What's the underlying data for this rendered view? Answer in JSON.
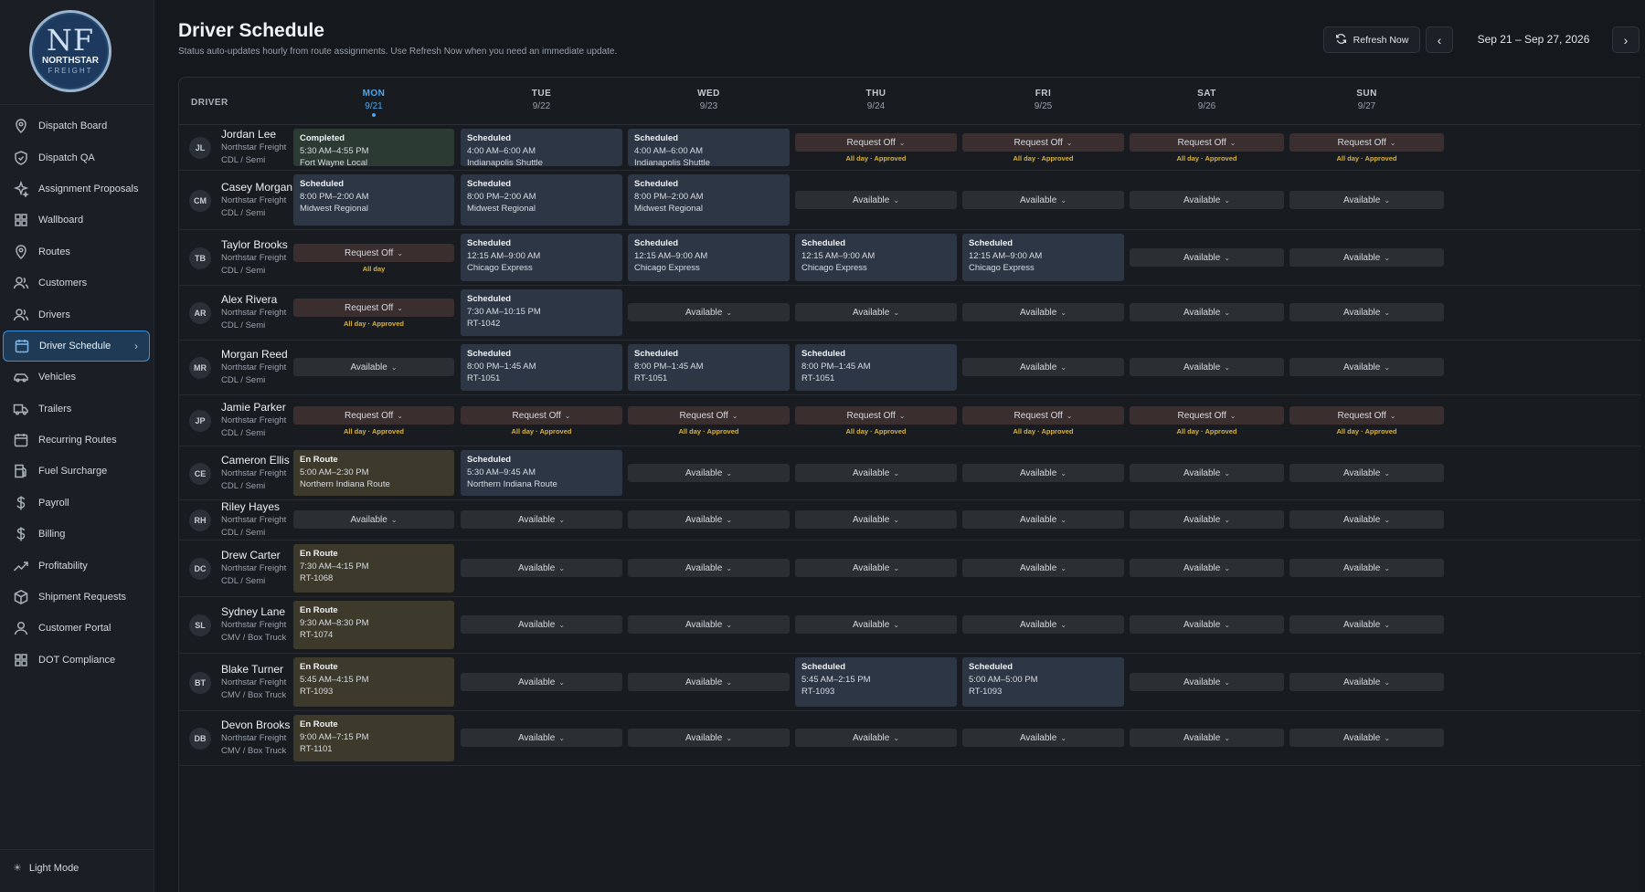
{
  "brand": {
    "initials": "NF",
    "name": "NORTHSTAR",
    "sub": "FREIGHT"
  },
  "sidebar": {
    "items": [
      {
        "label": "Dispatch Board",
        "icon": "map-pin-icon"
      },
      {
        "label": "Dispatch QA",
        "icon": "shield-icon"
      },
      {
        "label": "Assignment Proposals",
        "icon": "sparkle-icon"
      },
      {
        "label": "Wallboard",
        "icon": "grid-icon"
      },
      {
        "label": "Routes",
        "icon": "map-pin-icon"
      },
      {
        "label": "Customers",
        "icon": "users-icon"
      },
      {
        "label": "Drivers",
        "icon": "users-icon"
      },
      {
        "label": "Driver Schedule",
        "icon": "calendar-icon",
        "active": true
      },
      {
        "label": "Vehicles",
        "icon": "car-icon"
      },
      {
        "label": "Trailers",
        "icon": "truck-icon"
      },
      {
        "label": "Recurring Routes",
        "icon": "calendar-icon"
      },
      {
        "label": "Fuel Surcharge",
        "icon": "fuel-icon"
      },
      {
        "label": "Payroll",
        "icon": "dollar-icon"
      },
      {
        "label": "Billing",
        "icon": "dollar-icon"
      },
      {
        "label": "Profitability",
        "icon": "trend-icon"
      },
      {
        "label": "Shipment Requests",
        "icon": "box-icon"
      },
      {
        "label": "Customer Portal",
        "icon": "user-icon"
      },
      {
        "label": "DOT Compliance",
        "icon": "grid-icon"
      }
    ],
    "footer_label": "Light Mode"
  },
  "header": {
    "title": "Driver Schedule",
    "subtitle": "Status auto-updates hourly from route assignments. Use Refresh Now when you need an immediate update.",
    "refresh_label": "Refresh Now",
    "date_range": "Sep 21 – Sep 27, 2026"
  },
  "grid": {
    "driver_header": "DRIVER",
    "days": [
      {
        "name": "MON",
        "date": "9/21",
        "today": true
      },
      {
        "name": "TUE",
        "date": "9/22"
      },
      {
        "name": "WED",
        "date": "9/23"
      },
      {
        "name": "THU",
        "date": "9/24"
      },
      {
        "name": "FRI",
        "date": "9/25"
      },
      {
        "name": "SAT",
        "date": "9/26"
      },
      {
        "name": "SUN",
        "date": "9/27"
      }
    ],
    "drivers": [
      {
        "initials": "JL",
        "name": "Jordan Lee",
        "company": "Northstar Freight",
        "license": "CDL / Semi",
        "cells": [
          {
            "type": "completed",
            "status": "Completed",
            "time": "5:30 AM–4:55 PM",
            "route": "Fort Wayne Local"
          },
          {
            "type": "scheduled",
            "status": "Scheduled",
            "time": "4:00 AM–6:00 AM",
            "route": "Indianapolis Shuttle"
          },
          {
            "type": "scheduled",
            "status": "Scheduled",
            "time": "4:00 AM–6:00 AM",
            "route": "Indianapolis Shuttle"
          },
          {
            "type": "reqoff",
            "label": "Request Off",
            "note": "All day · Approved"
          },
          {
            "type": "reqoff",
            "label": "Request Off",
            "note": "All day · Approved"
          },
          {
            "type": "reqoff",
            "label": "Request Off",
            "note": "All day · Approved"
          },
          {
            "type": "reqoff",
            "label": "Request Off",
            "note": "All day · Approved"
          }
        ]
      },
      {
        "initials": "CM",
        "name": "Casey Morgan",
        "company": "Northstar Freight",
        "license": "CDL / Semi",
        "cells": [
          {
            "type": "scheduled",
            "status": "Scheduled",
            "time": "8:00 PM–2:00 AM",
            "route": "Midwest Regional"
          },
          {
            "type": "scheduled",
            "status": "Scheduled",
            "time": "8:00 PM–2:00 AM",
            "route": "Midwest Regional"
          },
          {
            "type": "scheduled",
            "status": "Scheduled",
            "time": "8:00 PM–2:00 AM",
            "route": "Midwest Regional"
          },
          {
            "type": "available",
            "label": "Available"
          },
          {
            "type": "available",
            "label": "Available"
          },
          {
            "type": "available",
            "label": "Available"
          },
          {
            "type": "available",
            "label": "Available"
          }
        ]
      },
      {
        "initials": "TB",
        "name": "Taylor Brooks",
        "company": "Northstar Freight",
        "license": "CDL / Semi",
        "cells": [
          {
            "type": "reqoff",
            "label": "Request Off",
            "note": "All day"
          },
          {
            "type": "scheduled",
            "status": "Scheduled",
            "time": "12:15 AM–9:00 AM",
            "route": "Chicago Express"
          },
          {
            "type": "scheduled",
            "status": "Scheduled",
            "time": "12:15 AM–9:00 AM",
            "route": "Chicago Express"
          },
          {
            "type": "scheduled",
            "status": "Scheduled",
            "time": "12:15 AM–9:00 AM",
            "route": "Chicago Express"
          },
          {
            "type": "scheduled",
            "status": "Scheduled",
            "time": "12:15 AM–9:00 AM",
            "route": "Chicago Express"
          },
          {
            "type": "available",
            "label": "Available"
          },
          {
            "type": "available",
            "label": "Available"
          }
        ]
      },
      {
        "initials": "AR",
        "name": "Alex Rivera",
        "company": "Northstar Freight",
        "license": "CDL / Semi",
        "cells": [
          {
            "type": "reqoff",
            "label": "Request Off",
            "note": "All day · Approved"
          },
          {
            "type": "scheduled",
            "status": "Scheduled",
            "time": "7:30 AM–10:15 PM",
            "route": "RT-1042"
          },
          {
            "type": "available",
            "label": "Available"
          },
          {
            "type": "available",
            "label": "Available"
          },
          {
            "type": "available",
            "label": "Available"
          },
          {
            "type": "available",
            "label": "Available"
          },
          {
            "type": "available",
            "label": "Available"
          }
        ]
      },
      {
        "initials": "MR",
        "name": "Morgan Reed",
        "company": "Northstar Freight",
        "license": "CDL / Semi",
        "cells": [
          {
            "type": "available",
            "label": "Available"
          },
          {
            "type": "scheduled",
            "status": "Scheduled",
            "time": "8:00 PM–1:45 AM",
            "route": "RT-1051"
          },
          {
            "type": "scheduled",
            "status": "Scheduled",
            "time": "8:00 PM–1:45 AM",
            "route": "RT-1051"
          },
          {
            "type": "scheduled",
            "status": "Scheduled",
            "time": "8:00 PM–1:45 AM",
            "route": "RT-1051"
          },
          {
            "type": "available",
            "label": "Available"
          },
          {
            "type": "available",
            "label": "Available"
          },
          {
            "type": "available",
            "label": "Available"
          }
        ]
      },
      {
        "initials": "JP",
        "name": "Jamie Parker",
        "company": "Northstar Freight",
        "license": "CDL / Semi",
        "cells": [
          {
            "type": "reqoff",
            "label": "Request Off",
            "note": "All day · Approved"
          },
          {
            "type": "reqoff",
            "label": "Request Off",
            "note": "All day · Approved"
          },
          {
            "type": "reqoff",
            "label": "Request Off",
            "note": "All day · Approved"
          },
          {
            "type": "reqoff",
            "label": "Request Off",
            "note": "All day · Approved"
          },
          {
            "type": "reqoff",
            "label": "Request Off",
            "note": "All day · Approved"
          },
          {
            "type": "reqoff",
            "label": "Request Off",
            "note": "All day · Approved"
          },
          {
            "type": "reqoff",
            "label": "Request Off",
            "note": "All day · Approved"
          }
        ]
      },
      {
        "initials": "CE",
        "name": "Cameron Ellis",
        "company": "Northstar Freight",
        "license": "CDL / Semi",
        "cells": [
          {
            "type": "enroute",
            "status": "En Route",
            "time": "5:00 AM–2:30 PM",
            "route": "Northern Indiana Route"
          },
          {
            "type": "scheduled",
            "status": "Scheduled",
            "time": "5:30 AM–9:45 AM",
            "route": "Northern Indiana Route"
          },
          {
            "type": "available",
            "label": "Available"
          },
          {
            "type": "available",
            "label": "Available"
          },
          {
            "type": "available",
            "label": "Available"
          },
          {
            "type": "available",
            "label": "Available"
          },
          {
            "type": "available",
            "label": "Available"
          }
        ]
      },
      {
        "initials": "RH",
        "name": "Riley Hayes",
        "company": "Northstar Freight",
        "license": "CDL / Semi",
        "cells": [
          {
            "type": "available",
            "label": "Available"
          },
          {
            "type": "available",
            "label": "Available"
          },
          {
            "type": "available",
            "label": "Available"
          },
          {
            "type": "available",
            "label": "Available"
          },
          {
            "type": "available",
            "label": "Available"
          },
          {
            "type": "available",
            "label": "Available"
          },
          {
            "type": "available",
            "label": "Available"
          }
        ]
      },
      {
        "initials": "DC",
        "name": "Drew Carter",
        "company": "Northstar Freight",
        "license": "CDL / Semi",
        "cells": [
          {
            "type": "enroute",
            "status": "En Route",
            "time": "7:30 AM–4:15 PM",
            "route": "RT-1068"
          },
          {
            "type": "available",
            "label": "Available"
          },
          {
            "type": "available",
            "label": "Available"
          },
          {
            "type": "available",
            "label": "Available"
          },
          {
            "type": "available",
            "label": "Available"
          },
          {
            "type": "available",
            "label": "Available"
          },
          {
            "type": "available",
            "label": "Available"
          }
        ]
      },
      {
        "initials": "SL",
        "name": "Sydney Lane",
        "company": "Northstar Freight",
        "license": "CMV / Box Truck",
        "cells": [
          {
            "type": "enroute",
            "status": "En Route",
            "time": "9:30 AM–8:30 PM",
            "route": "RT-1074"
          },
          {
            "type": "available",
            "label": "Available"
          },
          {
            "type": "available",
            "label": "Available"
          },
          {
            "type": "available",
            "label": "Available"
          },
          {
            "type": "available",
            "label": "Available"
          },
          {
            "type": "available",
            "label": "Available"
          },
          {
            "type": "available",
            "label": "Available"
          }
        ]
      },
      {
        "initials": "BT",
        "name": "Blake Turner",
        "company": "Northstar Freight",
        "license": "CMV / Box Truck",
        "cells": [
          {
            "type": "enroute",
            "status": "En Route",
            "time": "5:45 AM–4:15 PM",
            "route": "RT-1093"
          },
          {
            "type": "available",
            "label": "Available"
          },
          {
            "type": "available",
            "label": "Available"
          },
          {
            "type": "scheduled",
            "status": "Scheduled",
            "time": "5:45 AM–2:15 PM",
            "route": "RT-1093"
          },
          {
            "type": "scheduled",
            "status": "Scheduled",
            "time": "5:00 AM–5:00 PM",
            "route": "RT-1093"
          },
          {
            "type": "available",
            "label": "Available"
          },
          {
            "type": "available",
            "label": "Available"
          }
        ]
      },
      {
        "initials": "DB",
        "name": "Devon Brooks",
        "company": "Northstar Freight",
        "license": "CMV / Box Truck",
        "cells": [
          {
            "type": "enroute",
            "status": "En Route",
            "time": "9:00 AM–7:15 PM",
            "route": "RT-1101"
          },
          {
            "type": "available",
            "label": "Available"
          },
          {
            "type": "available",
            "label": "Available"
          },
          {
            "type": "available",
            "label": "Available"
          },
          {
            "type": "available",
            "label": "Available"
          },
          {
            "type": "available",
            "label": "Available"
          },
          {
            "type": "available",
            "label": "Available"
          }
        ]
      }
    ]
  },
  "colors": {
    "accent": "#4fa6ea",
    "scheduled": "#2c3645",
    "completed": "#2b3a33",
    "en_route": "#3d3a2b",
    "request_off": "#3a2e2f",
    "available": "#2b2e33",
    "approved_note": "#d9b33f"
  }
}
